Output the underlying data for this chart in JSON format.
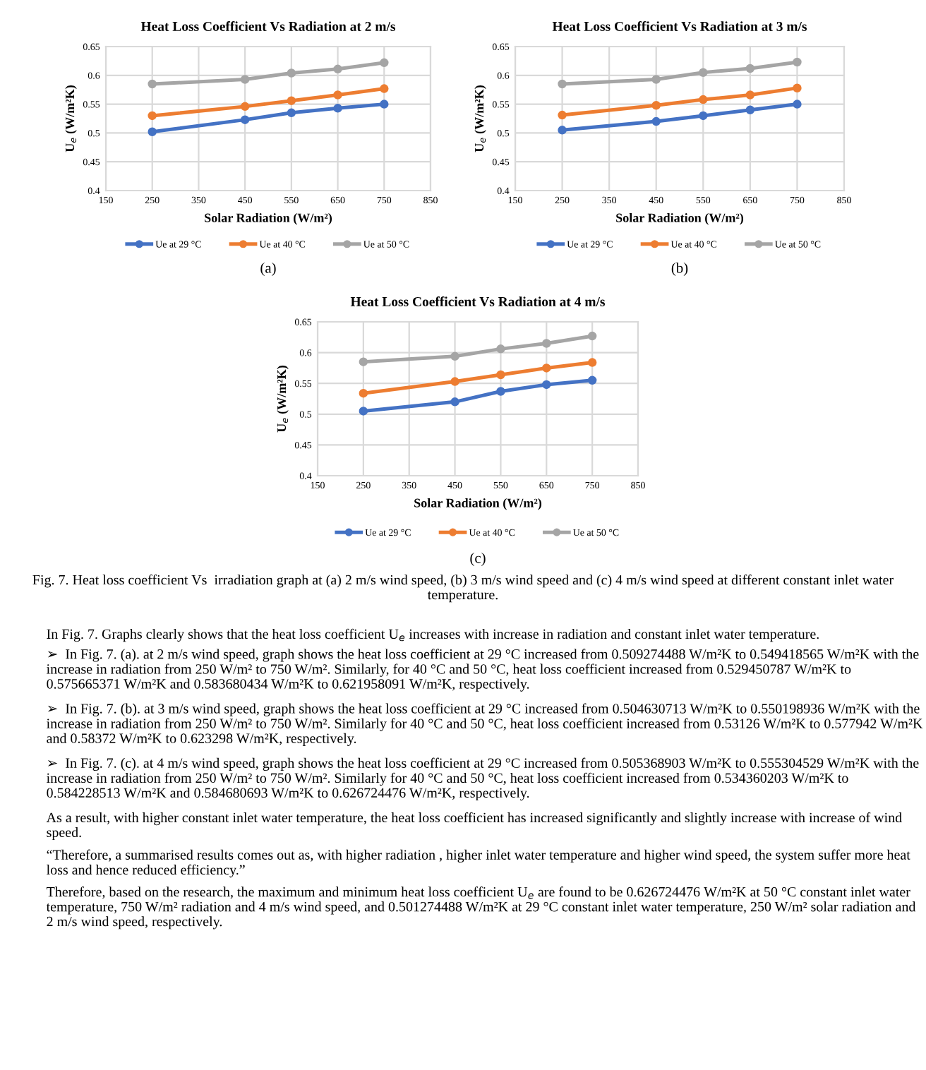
{
  "chart_data": [
    {
      "type": "line",
      "title": "Heat Loss Coefficient Vs Radiation at 2 m/s",
      "xlabel": "Solar Radiation (W/m²)",
      "ylabel": "U$_{e}$ (W/m²K)",
      "x": [
        250,
        450,
        550,
        650,
        750
      ],
      "series": [
        {
          "name": "Ue at 29 °C",
          "color": "#4472c4",
          "values": [
            0.502,
            0.523,
            0.535,
            0.543,
            0.55
          ]
        },
        {
          "name": "Ue at 40 °C",
          "color": "#ed7d31",
          "values": [
            0.53,
            0.546,
            0.556,
            0.566,
            0.577
          ]
        },
        {
          "name": "Ue at 50 °C",
          "color": "#a5a5a5",
          "values": [
            0.585,
            0.593,
            0.604,
            0.611,
            0.622
          ]
        }
      ],
      "xlim": [
        150,
        850
      ],
      "xticks": [
        150,
        250,
        350,
        450,
        550,
        650,
        750,
        850
      ],
      "ylim": [
        0.4,
        0.65
      ],
      "yticks": [
        0.4,
        0.45,
        0.5,
        0.55,
        0.6,
        0.65
      ],
      "grid": true,
      "legend": "bottom",
      "marker": "circle",
      "line_style": "solid",
      "annotations": [
        "(a)"
      ]
    },
    {
      "type": "line",
      "title": "Heat Loss Coefficient Vs Radiation at 3 m/s",
      "xlabel": "Solar Radiation (W/m²)",
      "ylabel": "U$_{e}$ (W/m²K)",
      "x": [
        250,
        450,
        550,
        650,
        750
      ],
      "series": [
        {
          "name": "Ue at 29 °C",
          "color": "#4472c4",
          "values": [
            0.505,
            0.52,
            0.53,
            0.54,
            0.55
          ]
        },
        {
          "name": "Ue at 40 °C",
          "color": "#ed7d31",
          "values": [
            0.531,
            0.548,
            0.558,
            0.566,
            0.578
          ]
        },
        {
          "name": "Ue at 50 °C",
          "color": "#a5a5a5",
          "values": [
            0.585,
            0.593,
            0.605,
            0.612,
            0.623
          ]
        }
      ],
      "xlim": [
        150,
        850
      ],
      "xticks": [
        150,
        250,
        350,
        450,
        550,
        650,
        750,
        850
      ],
      "ylim": [
        0.4,
        0.65
      ],
      "yticks": [
        0.4,
        0.45,
        0.5,
        0.55,
        0.6,
        0.65
      ],
      "grid": true,
      "legend": "bottom",
      "marker": "circle",
      "line_style": "solid",
      "annotations": [
        "(b)"
      ]
    },
    {
      "type": "line",
      "title": "Heat Loss Coefficient Vs Radiation at 4 m/s",
      "xlabel": "Solar Radiation (W/m²)",
      "ylabel": "U$_{e}$ (W/m²K)",
      "x": [
        250,
        450,
        550,
        650,
        750
      ],
      "series": [
        {
          "name": "Ue at 29 °C",
          "color": "#4472c4",
          "values": [
            0.505,
            0.52,
            0.537,
            0.548,
            0.555
          ]
        },
        {
          "name": "Ue at 40 °C",
          "color": "#ed7d31",
          "values": [
            0.534,
            0.553,
            0.564,
            0.575,
            0.584
          ]
        },
        {
          "name": "Ue at 50 °C",
          "color": "#a5a5a5",
          "values": [
            0.585,
            0.594,
            0.606,
            0.615,
            0.627
          ]
        }
      ],
      "xlim": [
        150,
        850
      ],
      "xticks": [
        150,
        250,
        350,
        450,
        550,
        650,
        750,
        850
      ],
      "ylim": [
        0.4,
        0.65
      ],
      "yticks": [
        0.4,
        0.45,
        0.5,
        0.55,
        0.6,
        0.65
      ],
      "grid": true,
      "legend": "bottom",
      "marker": "circle",
      "line_style": "solid",
      "annotations": [
        "(c)",
        "Fig. 7. Heat loss coefficient Vs  irradiation graph at (a) 2 m/s wind speed, (b) 3 m/s wind speed and (c) 4 m/s wind speed at different constant inlet water temperature.",
        "In Fig. 7. Graphs clearly shows that the heat loss coefficient U$_{e}$ increases with increase in radiation and constant inlet water temperature.",
        "➢  In Fig. 7. (a). at 2 m/s wind speed, graph shows the heat loss coefficient at 29 °C increased from 0.509274488 W/m²K to 0.549418565 W/m²K with the increase in radiation from 250 W/m² to 750 W/m². Similarly, for 40 °C and 50 °C, heat loss coefficient increased from 0.529450787 W/m²K to 0.575665371 W/m²K and 0.583680434 W/m²K to 0.621958091 W/m²K, respectively.",
        "➢  In Fig. 7. (b). at 3 m/s wind speed, graph shows the heat loss coefficient at 29 °C increased from 0.504630713 W/m²K to 0.550198936 W/m²K with the increase in radiation from 250 W/m² to 750 W/m². Similarly for 40 °C and 50 °C, heat loss coefficient increased from 0.53126 W/m²K to 0.577942 W/m²K and 0.58372 W/m²K to 0.623298 W/m²K, respectively.",
        "➢  In Fig. 7. (c). at 4 m/s wind speed, graph shows the heat loss coefficient at 29 °C increased from 0.505368903 W/m²K to 0.555304529 W/m²K with the increase in radiation from 250 W/m² to 750 W/m². Similarly for 40 °C and 50 °C, heat loss coefficient increased from 0.534360203 W/m²K to 0.584228513 W/m²K and 0.584680693 W/m²K to 0.626724476 W/m²K, respectively.",
        "As a result, with higher constant inlet water temperature, the heat loss coefficient has increased significantly and slightly increase with increase of wind speed.",
        "“Therefore, a summarised results comes out as, with higher radiation , higher inlet water temperature and higher wind speed, the system suffer more heat loss and hence reduced efficiency.”",
        "Therefore, based on the research, the maximum and minimum heat loss coefficient U$_{e}$ are found to be 0.626724476 W/m²K at 50 °C constant inlet water temperature, 750 W/m² radiation and 4 m/s wind speed, and 0.501274488 W/m²K at 29 °C constant inlet water temperature, 250 W/m² solar radiation and 2 m/s wind speed, respectively."
      ]
    }
  ]
}
